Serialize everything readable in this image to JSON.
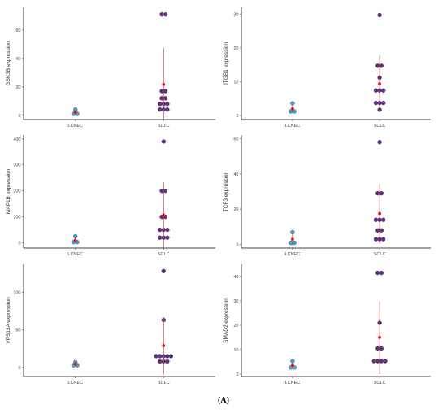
{
  "figure_label": "(A)",
  "colors": {
    "lcnec_point": "#4f9fc4",
    "sclc_point": "#6a2a7e",
    "mean": "#e3131b",
    "sd_line": "#c63b3b",
    "axis": "#000000"
  },
  "chart_data": [
    {
      "type": "scatter",
      "title": "",
      "xlabel": "",
      "ylabel": "GSK3B expression",
      "categories": [
        "LCNEC",
        "SCLC"
      ],
      "yticks": [
        0,
        20,
        40,
        60
      ],
      "ylim": [
        -3,
        76
      ],
      "points": {
        "LCNEC": [
          1,
          1,
          4
        ],
        "SCLC": [
          4,
          4,
          4,
          8,
          8,
          8,
          12,
          12,
          17,
          17,
          71,
          71
        ]
      },
      "mean": {
        "LCNEC": 2,
        "SCLC": 21.7
      },
      "sd": {
        "LCNEC": 1.7,
        "SCLC": 26
      }
    },
    {
      "type": "scatter",
      "title": "",
      "xlabel": "",
      "ylabel": "ITGB1 expression",
      "categories": [
        "LCNEC",
        "SCLC"
      ],
      "yticks": [
        0,
        10,
        20,
        30
      ],
      "ylim": [
        -1.2,
        32
      ],
      "points": {
        "LCNEC": [
          1.2,
          1.2,
          3.6
        ],
        "SCLC": [
          1.7,
          3.7,
          3.7,
          3.7,
          7.4,
          7.4,
          7.4,
          11.2,
          14.7,
          14.7,
          29.7
        ]
      },
      "mean": {
        "LCNEC": 2,
        "SCLC": 9.4
      },
      "sd": {
        "LCNEC": 1.4,
        "SCLC": 8.5
      }
    },
    {
      "type": "scatter",
      "title": "",
      "xlabel": "",
      "ylabel": "MAP1B expression",
      "categories": [
        "LCNEC",
        "SCLC"
      ],
      "yticks": [
        0,
        100,
        200,
        300,
        400
      ],
      "ylim": [
        -20,
        415
      ],
      "points": {
        "LCNEC": [
          3,
          3,
          25
        ],
        "SCLC": [
          20,
          20,
          20,
          50,
          50,
          50,
          100,
          100,
          200,
          200,
          390
        ]
      },
      "mean": {
        "LCNEC": 10,
        "SCLC": 107
      },
      "sd": {
        "LCNEC": 12.7,
        "SCLC": 125
      }
    },
    {
      "type": "scatter",
      "title": "",
      "xlabel": "",
      "ylabel": "TCF3 expression",
      "categories": [
        "LCNEC",
        "SCLC"
      ],
      "yticks": [
        0,
        20,
        40,
        60
      ],
      "ylim": [
        -2,
        62
      ],
      "points": {
        "LCNEC": [
          1,
          1,
          7
        ],
        "SCLC": [
          3,
          3,
          3,
          8,
          8,
          14,
          14,
          14,
          29,
          29,
          58
        ]
      },
      "mean": {
        "LCNEC": 3,
        "SCLC": 17.5
      },
      "sd": {
        "LCNEC": 3.5,
        "SCLC": 17
      }
    },
    {
      "type": "scatter",
      "title": "",
      "xlabel": "",
      "ylabel": "VPS13A expression",
      "categories": [
        "LCNEC",
        "SCLC"
      ],
      "yticks": [
        0,
        50,
        100
      ],
      "ylim": [
        -12,
        137
      ],
      "points": {
        "LCNEC": [
          3,
          3,
          7
        ],
        "SCLC": [
          8,
          8,
          8,
          15,
          15,
          15,
          15,
          15,
          63,
          128
        ]
      },
      "mean": {
        "LCNEC": 4.3,
        "SCLC": 29
      },
      "sd": {
        "LCNEC": 2.3,
        "SCLC": 38
      }
    },
    {
      "type": "scatter",
      "title": "",
      "xlabel": "",
      "ylabel": "SMAD2 expression",
      "categories": [
        "LCNEC",
        "SCLC"
      ],
      "yticks": [
        0,
        10,
        20,
        30,
        40
      ],
      "ylim": [
        -1,
        45
      ],
      "points": {
        "LCNEC": [
          2.7,
          2.7,
          5.3
        ],
        "SCLC": [
          5.3,
          5.3,
          5.3,
          5.3,
          10.5,
          10.5,
          21,
          41.5,
          41.5
        ]
      },
      "mean": {
        "LCNEC": 3.6,
        "SCLC": 15
      },
      "sd": {
        "LCNEC": 1.5,
        "SCLC": 15
      }
    }
  ]
}
